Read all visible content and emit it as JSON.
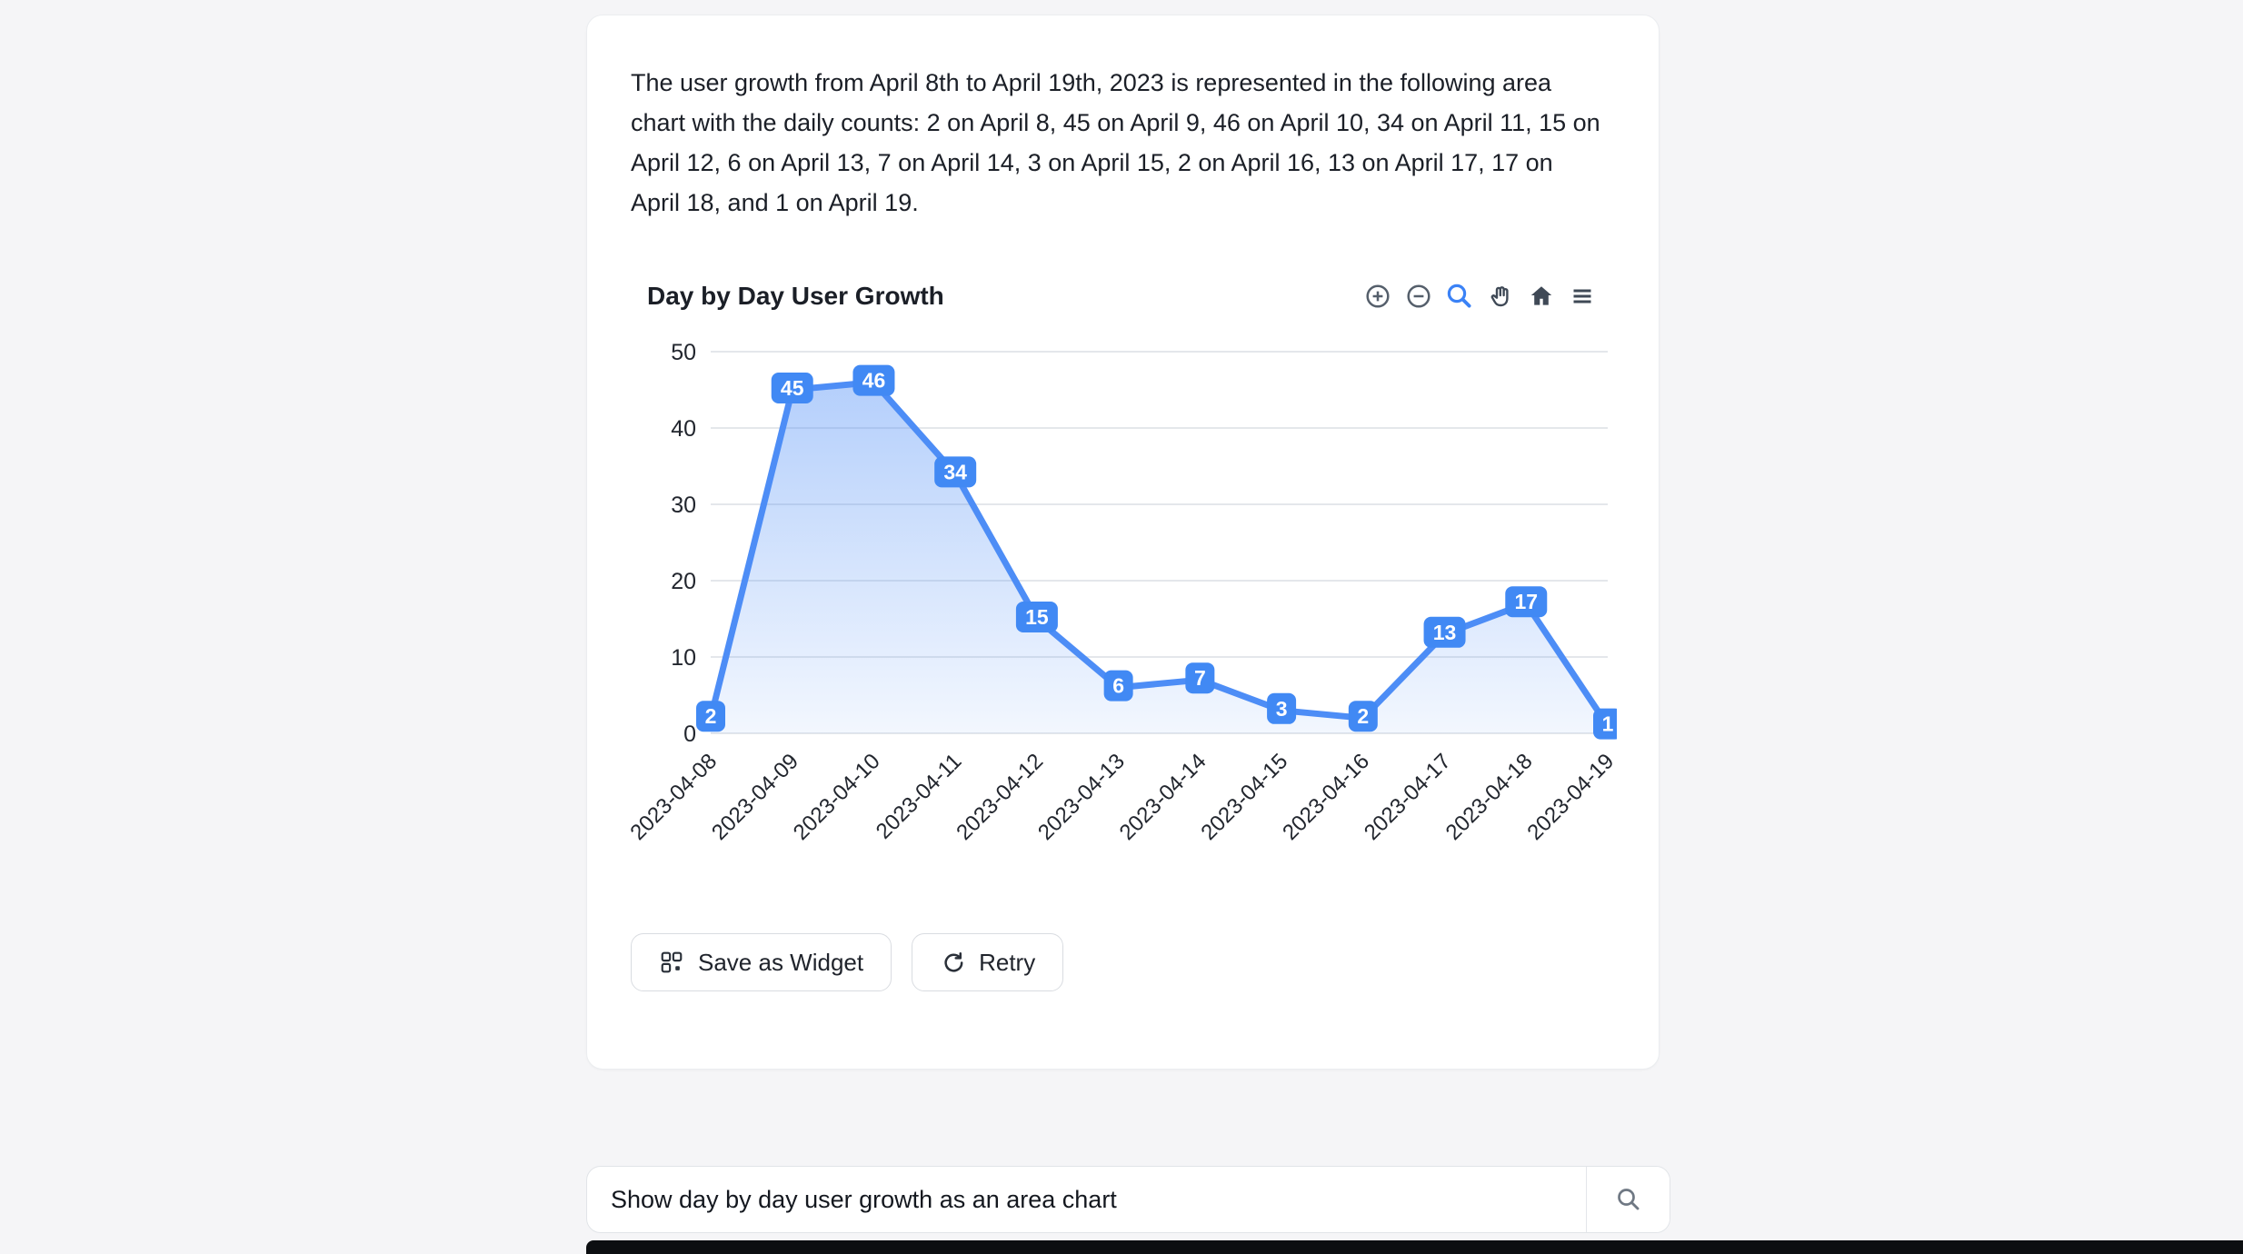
{
  "window": {
    "background": "#f5f5f7",
    "bottom_bar_color": "#0c0e11"
  },
  "card": {
    "description": "The user growth from April 8th to April 19th, 2023 is represented in the following area chart with the daily counts: 2 on April 8, 45 on April 9, 46 on April 10, 34 on April 11, 15 on April 12, 6 on April 13, 7 on April 14, 3 on April 15, 2 on April 16, 13 on April 17, 17 on April 18, and 1 on April 19.",
    "save_widget_label": "Save as Widget",
    "retry_label": "Retry"
  },
  "chart_toolbar": {
    "items": [
      "zoom-in",
      "zoom-out",
      "box-zoom",
      "pan",
      "reset-axes",
      "menu"
    ],
    "active_item": "box-zoom",
    "active_color": "#3b82f6",
    "icon_color": "#3f4956"
  },
  "chart_data": {
    "type": "area",
    "title": "Day by Day User Growth",
    "x": [
      "2023-04-08",
      "2023-04-09",
      "2023-04-10",
      "2023-04-11",
      "2023-04-12",
      "2023-04-13",
      "2023-04-14",
      "2023-04-15",
      "2023-04-16",
      "2023-04-17",
      "2023-04-18",
      "2023-04-19"
    ],
    "values": [
      2,
      45,
      46,
      34,
      15,
      6,
      7,
      3,
      2,
      13,
      17,
      1
    ],
    "xlabel": "",
    "ylabel": "",
    "ylim": [
      0,
      50
    ],
    "yticks": [
      0,
      10,
      20,
      30,
      40,
      50
    ],
    "grid": true,
    "data_labels_shown": true,
    "legend": "none",
    "line_color": "#4d8df6",
    "badge_color": "#4189f4",
    "grid_color": "#e4e7eb",
    "tick_color": "#22262e",
    "fill_top_opacity": 0.42,
    "fill_bottom_opacity": 0.07
  },
  "search": {
    "value": "Show day by day user growth as an area chart",
    "placeholder": ""
  }
}
